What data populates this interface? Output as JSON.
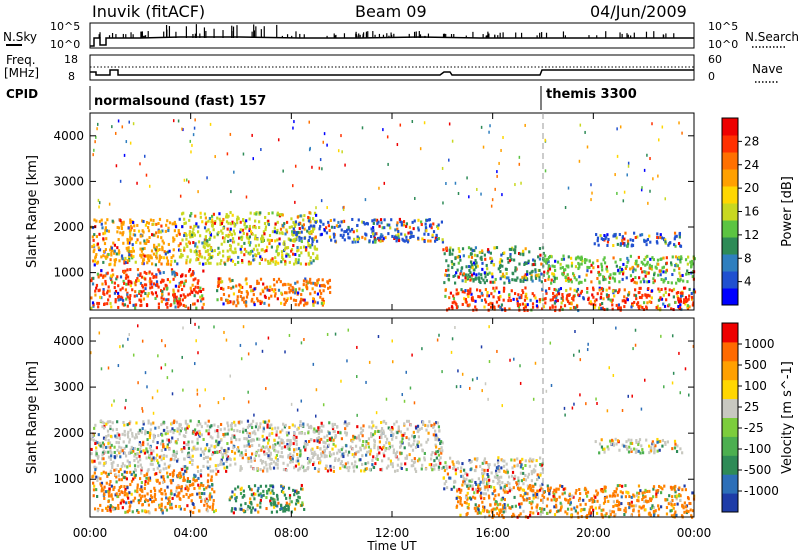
{
  "header": {
    "station": "Inuvik (fitACF)",
    "beam": "Beam 09",
    "date": "04/Jun/2009"
  },
  "top_panels": {
    "nsky_label": "N.Sky",
    "nsearch_label": "N.Search",
    "nsky_ticks": [
      "10^5",
      "10^0"
    ],
    "nsearch_ticks": [
      "10^5",
      "10^0"
    ],
    "freq_label": "Freq.",
    "freq_unit": "[MHz]",
    "freq_ticks": [
      "18",
      "8"
    ],
    "nave_label": "Nave",
    "nave_ticks": [
      "60",
      "0"
    ],
    "cpid_label": "CPID",
    "cpid_segments": [
      {
        "name": "normalsound (fast) 157",
        "start_hour": 0
      },
      {
        "name": "themis 3300",
        "start_hour": 18
      }
    ]
  },
  "chart_data": [
    {
      "type": "heatmap",
      "panel": "power",
      "xlabel": "Time UT",
      "ylabel": "Slant Range [km]",
      "x_ticks": [
        "00:00",
        "04:00",
        "08:00",
        "12:00",
        "16:00",
        "20:00",
        "00:00"
      ],
      "xlim_hours": [
        0,
        24
      ],
      "y_ticks": [
        1000,
        2000,
        3000,
        4000
      ],
      "ylim_km": [
        180,
        4500
      ],
      "colorbar": {
        "label": "Power [dB]",
        "ticks": [
          "4",
          "8",
          "12",
          "16",
          "20",
          "24",
          "28"
        ],
        "colors": [
          "#0000ff",
          "#2050d0",
          "#2f7fbf",
          "#2e8b57",
          "#5cc442",
          "#c8d820",
          "#ffd700",
          "#ffa000",
          "#ff7000",
          "#ff3000",
          "#ee0000"
        ]
      },
      "bands": [
        {
          "start_hour": 0.0,
          "end_hour": 4.5,
          "range_km": [
            250,
            1100
          ],
          "color": "#ff3000"
        },
        {
          "start_hour": 0.0,
          "end_hour": 3.5,
          "range_km": [
            1200,
            2200
          ],
          "color": "#ffa000"
        },
        {
          "start_hour": 3.5,
          "end_hour": 9.0,
          "range_km": [
            1200,
            2350
          ],
          "color": "#c8d820"
        },
        {
          "start_hour": 5.0,
          "end_hour": 9.5,
          "range_km": [
            300,
            900
          ],
          "color": "#ff7000"
        },
        {
          "start_hour": 8.0,
          "end_hour": 14.0,
          "range_km": [
            1700,
            2200
          ],
          "color": "#2050d0"
        },
        {
          "start_hour": 14.0,
          "end_hour": 18.0,
          "range_km": [
            800,
            1600
          ],
          "color": "#2e8b57"
        },
        {
          "start_hour": 14.0,
          "end_hour": 24.0,
          "range_km": [
            200,
            700
          ],
          "color": "#ff3000"
        },
        {
          "start_hour": 20.0,
          "end_hour": 23.5,
          "range_km": [
            1600,
            1900
          ],
          "color": "#2050d0"
        },
        {
          "start_hour": 18.0,
          "end_hour": 24.0,
          "range_km": [
            800,
            1400
          ],
          "color": "#5cc442"
        }
      ]
    },
    {
      "type": "heatmap",
      "panel": "velocity",
      "xlabel": "Time UT",
      "ylabel": "Slant Range [km]",
      "x_ticks": [
        "00:00",
        "04:00",
        "08:00",
        "12:00",
        "16:00",
        "20:00",
        "00:00"
      ],
      "xlim_hours": [
        0,
        24
      ],
      "y_ticks": [
        1000,
        2000,
        3000,
        4000
      ],
      "ylim_km": [
        180,
        4500
      ],
      "colorbar": {
        "label": "Velocity [m s^-1]",
        "ticks": [
          "1000",
          "500",
          "100",
          "25",
          "-25",
          "-100",
          "-500",
          "-1000"
        ],
        "colors": [
          "#1e3ca8",
          "#2c6fb8",
          "#2e8b57",
          "#4caf50",
          "#7ccd3c",
          "#c8c8c0",
          "#ffd700",
          "#ffa000",
          "#ff6a00",
          "#ee0000"
        ]
      },
      "bands": [
        {
          "start_hour": 0.0,
          "end_hour": 5.0,
          "range_km": [
            300,
            1200
          ],
          "color": "#ff7f00"
        },
        {
          "start_hour": 0.0,
          "end_hour": 14.0,
          "range_km": [
            1200,
            2300
          ],
          "color": "#c8c8c0"
        },
        {
          "start_hour": 5.5,
          "end_hour": 8.5,
          "range_km": [
            300,
            900
          ],
          "color": "#2e8b57"
        },
        {
          "start_hour": 14.0,
          "end_hour": 18.0,
          "range_km": [
            800,
            1500
          ],
          "color": "#c8c8c0"
        },
        {
          "start_hour": 14.5,
          "end_hour": 24.0,
          "range_km": [
            200,
            900
          ],
          "color": "#ff7f00"
        },
        {
          "start_hour": 20.0,
          "end_hour": 23.5,
          "range_km": [
            1600,
            1900
          ],
          "color": "#c8c8c0"
        }
      ]
    }
  ],
  "colors": {
    "axis": "#000000",
    "background": "#ffffff"
  }
}
